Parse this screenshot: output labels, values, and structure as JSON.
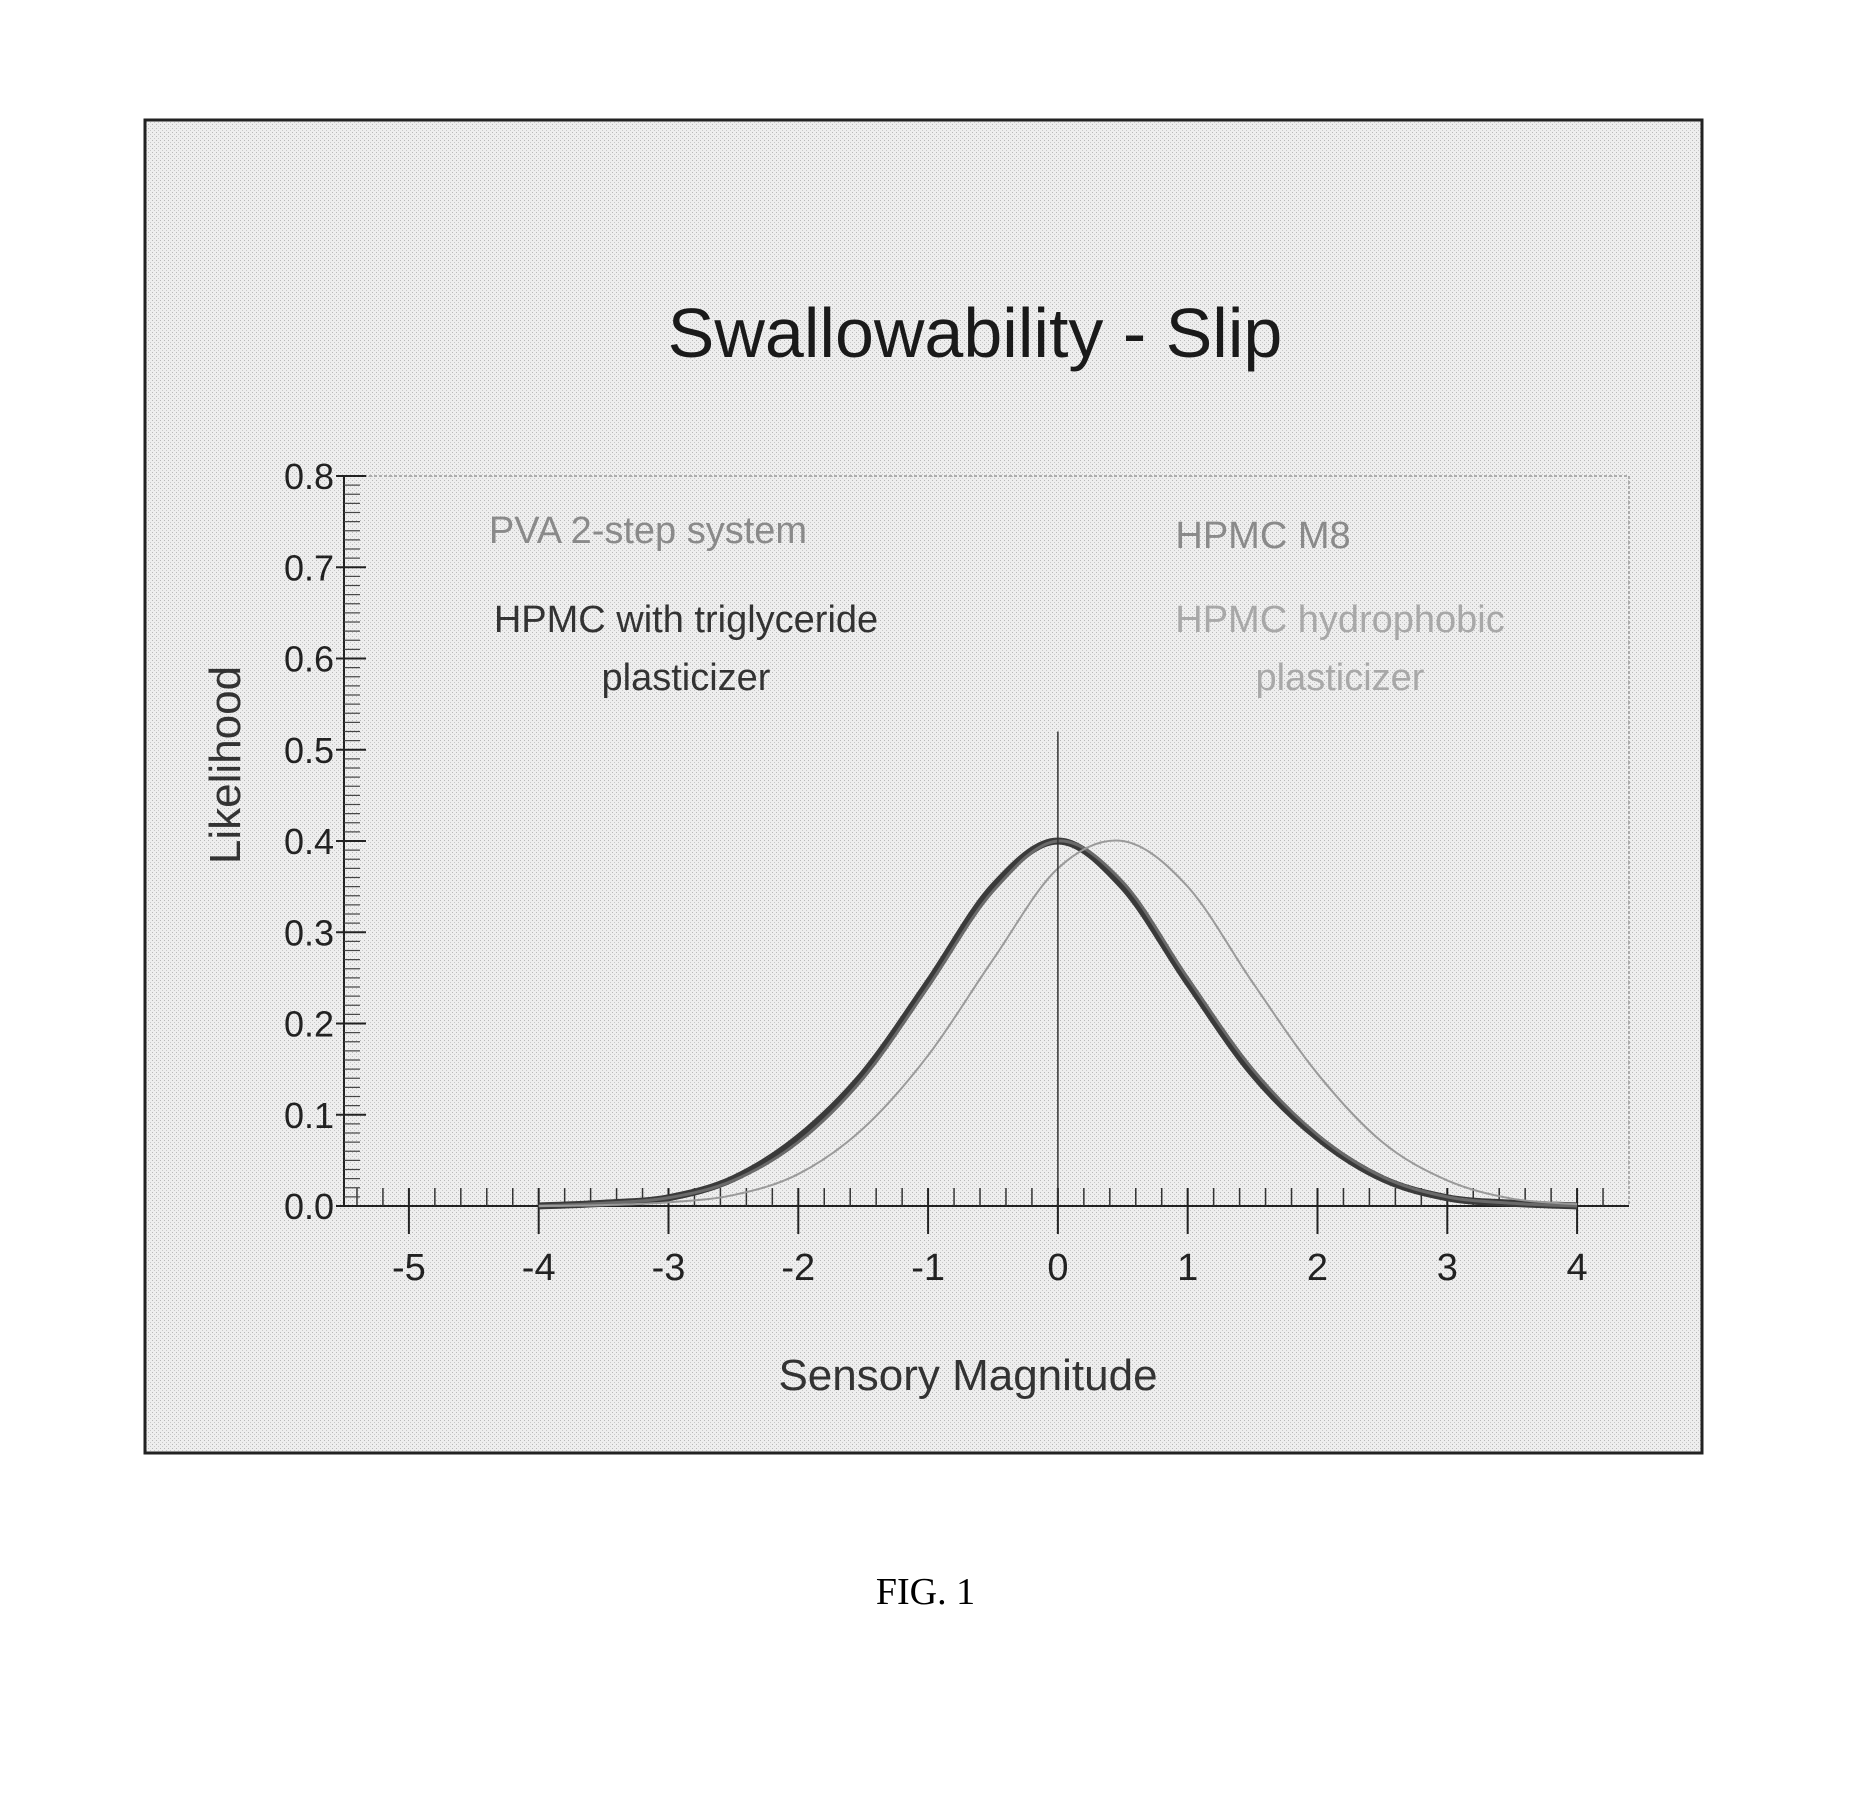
{
  "figure_caption": "FIG. 1",
  "chart_data": {
    "type": "line",
    "title": "Swallowability - Slip",
    "xlabel": "Sensory Magnitude",
    "ylabel": "Likelihood",
    "xlim": [
      -5.5,
      4.4
    ],
    "ylim": [
      0.0,
      0.8
    ],
    "x_ticks": [
      -5,
      -4,
      -3,
      -2,
      -1,
      0,
      1,
      2,
      3,
      4
    ],
    "x_tick_labels": [
      "-5",
      "-4",
      "-3",
      "-2",
      "-1",
      "0",
      "1",
      "2",
      "3",
      "4"
    ],
    "y_ticks": [
      0.0,
      0.1,
      0.2,
      0.3,
      0.4,
      0.5,
      0.6,
      0.7,
      0.8
    ],
    "y_tick_labels": [
      "0.0",
      "0.1",
      "0.2",
      "0.3",
      "0.4",
      "0.5",
      "0.6",
      "0.7",
      "0.8"
    ],
    "reference_line_x": 0,
    "reference_line_ymax": 0.52,
    "annotations": [
      {
        "text": "PVA 2-step system",
        "color": "#8a8a8a"
      },
      {
        "text": "HPMC with triglyceride",
        "color": "#333333"
      },
      {
        "text": "plasticizer",
        "color": "#333333"
      },
      {
        "text": "HPMC M8",
        "color": "#8a8a8a"
      },
      {
        "text": "HPMC hydrophobic",
        "color": "#a8a8a8"
      },
      {
        "text": "plasticizer",
        "color": "#a8a8a8"
      }
    ],
    "series": [
      {
        "color": "#3a3a3a",
        "x": [
          -4.0,
          -3.5,
          -3.0,
          -2.5,
          -2.0,
          -1.5,
          -1.0,
          -0.5,
          0.0,
          0.5,
          1.0,
          1.5,
          2.0,
          2.5,
          3.0,
          3.5,
          4.0
        ],
        "y": [
          0.0,
          0.003,
          0.009,
          0.03,
          0.075,
          0.145,
          0.245,
          0.35,
          0.4,
          0.35,
          0.245,
          0.145,
          0.075,
          0.03,
          0.009,
          0.003,
          0.0
        ]
      },
      {
        "color": "#6a6a6a",
        "x": [
          -4.0,
          -3.5,
          -3.0,
          -2.5,
          -2.0,
          -1.5,
          -1.0,
          -0.5,
          0.0,
          0.5,
          1.0,
          1.5,
          2.0,
          2.5,
          3.0,
          3.5,
          4.0
        ],
        "y": [
          0.0,
          0.003,
          0.009,
          0.028,
          0.07,
          0.14,
          0.24,
          0.345,
          0.4,
          0.355,
          0.25,
          0.15,
          0.078,
          0.032,
          0.01,
          0.003,
          0.0
        ]
      },
      {
        "color": "#9a9a9a",
        "x": [
          -4.0,
          -3.5,
          -3.0,
          -2.5,
          -2.0,
          -1.5,
          -1.0,
          -0.5,
          0.0,
          0.5,
          1.0,
          1.5,
          2.0,
          2.5,
          3.0,
          3.5,
          4.0
        ],
        "y": [
          0.0,
          0.001,
          0.004,
          0.012,
          0.035,
          0.085,
          0.165,
          0.27,
          0.37,
          0.4,
          0.35,
          0.245,
          0.145,
          0.07,
          0.028,
          0.008,
          0.002
        ]
      }
    ]
  }
}
